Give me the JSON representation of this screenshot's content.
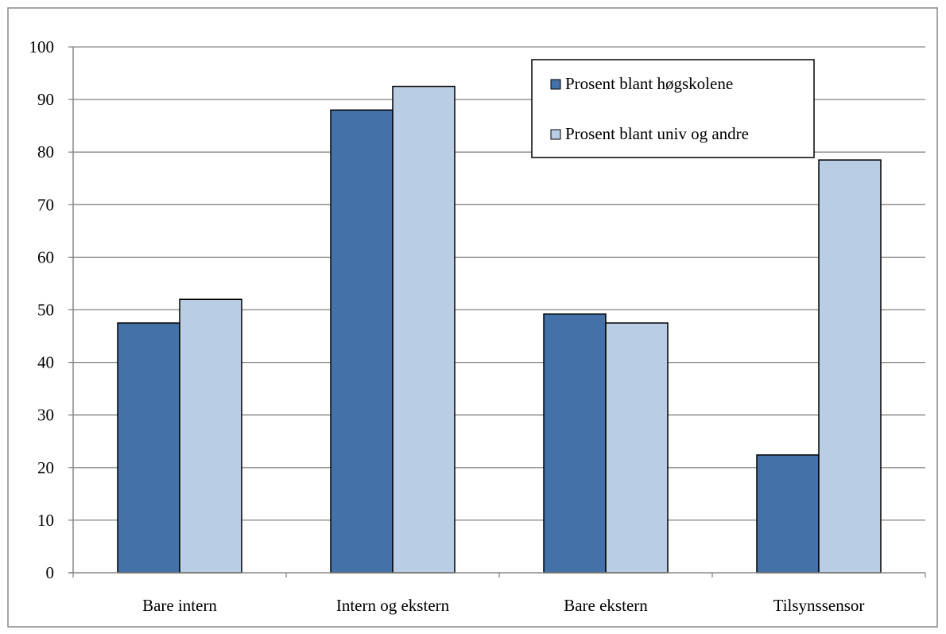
{
  "chart_data": {
    "type": "bar",
    "title": "",
    "xlabel": "",
    "ylabel": "",
    "categories": [
      "Bare intern",
      "Intern og ekstern",
      "Bare ekstern",
      "Tilsynssensor"
    ],
    "series": [
      {
        "name": "Prosent blant høgskolene",
        "color": "#4472A8",
        "values": [
          47.5,
          88,
          49.2,
          22.4
        ]
      },
      {
        "name": "Prosent blant univ og andre",
        "color": "#B9CDE5",
        "values": [
          52,
          92.5,
          47.5,
          78.5
        ]
      }
    ],
    "ylim": [
      0,
      100
    ],
    "yticks": [
      "0",
      "10",
      "20",
      "30",
      "40",
      "50",
      "60",
      "70",
      "80",
      "90",
      "100"
    ],
    "grid": true,
    "legend_position": "top-right"
  }
}
